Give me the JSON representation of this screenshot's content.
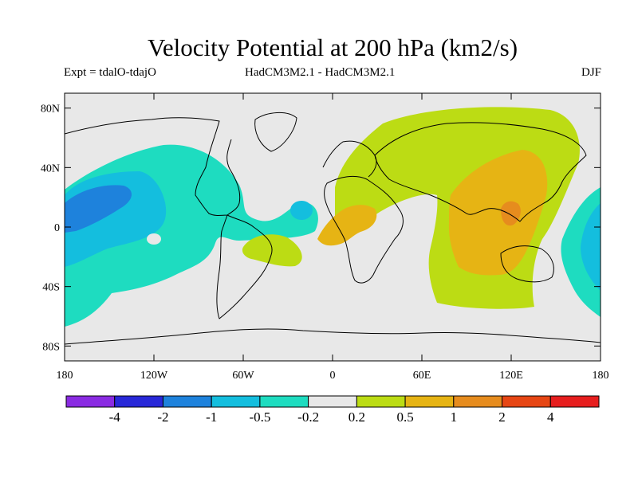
{
  "title": "Velocity Potential at 200 hPa (km2/s)",
  "subtitle_left": "Expt = tdalO-tdajO",
  "subtitle_center": "HadCM3M2.1 - HadCM3M2.1",
  "subtitle_right": "DJF",
  "lat_ticks": [
    "80N",
    "40N",
    "0",
    "40S",
    "80S"
  ],
  "lon_ticks": [
    "180",
    "120W",
    "60W",
    "0",
    "60E",
    "120E",
    "180"
  ],
  "colorbar": {
    "colors": [
      "#8a2be2",
      "#2828d8",
      "#1e82dc",
      "#14bede",
      "#1edcc0",
      "#e8e8e8",
      "#bcdc14",
      "#e6b414",
      "#e68c1e",
      "#e64614",
      "#e61e1e"
    ],
    "labels": [
      "-4",
      "-2",
      "-1",
      "-0.5",
      "-0.2",
      "0.2",
      "0.5",
      "1",
      "2",
      "4"
    ]
  },
  "legend_colors": {
    "background": "#e8e8e8",
    "neg_weak": "#1edcc0",
    "neg_mid": "#14bede",
    "neg_strong": "#1e82dc",
    "pos_weak": "#bcdc14",
    "pos_mid": "#e6b414",
    "pos_strong": "#e68c1e"
  }
}
